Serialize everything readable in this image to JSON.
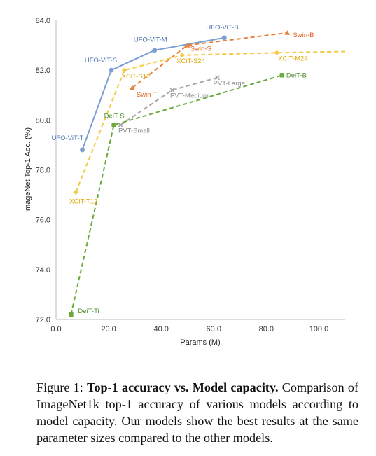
{
  "chart_data": {
    "type": "line",
    "title": "",
    "xlabel": "Params (M)",
    "ylabel": "ImageNet Top-1 Acc. (%)",
    "xlim": [
      0,
      110
    ],
    "ylim": [
      72,
      84
    ],
    "x_ticks": [
      "0.0",
      "20.0",
      "40.0",
      "60.0",
      "80.0",
      "100.0"
    ],
    "y_ticks": [
      "72.0",
      "74.0",
      "76.0",
      "78.0",
      "80.0",
      "82.0",
      "84.0"
    ],
    "grid": false,
    "legend": "none",
    "series": [
      {
        "family": "UFO-ViT",
        "color": "#7b9fd4",
        "line": "solid",
        "marker": "circle",
        "points": [
          {
            "label": "UFO-ViT-T",
            "x": 10.0,
            "y": 78.8
          },
          {
            "label": "UFO-ViT-S",
            "x": 21.0,
            "y": 82.0
          },
          {
            "label": "UFO-ViT-M",
            "x": 37.5,
            "y": 82.8
          },
          {
            "label": "UFO-ViT-B",
            "x": 64.0,
            "y": 83.3
          }
        ],
        "label_color": "#4a72b0"
      },
      {
        "family": "XCiT",
        "color": "#f5c842",
        "line": "dashed",
        "marker": "diamond",
        "points": [
          {
            "label": "XCiT-T12",
            "x": 7.5,
            "y": 77.1
          },
          {
            "label": "XCiT-S12",
            "x": 26.0,
            "y": 82.0
          },
          {
            "label": "XCiT-S24",
            "x": 48.0,
            "y": 82.6
          },
          {
            "label": "XCiT-M24",
            "x": 84.0,
            "y": 82.7
          },
          {
            "label": "",
            "x": 110.0,
            "y": 82.75
          }
        ],
        "label_color": "#e0a800"
      },
      {
        "family": "Swin",
        "color": "#e8803a",
        "line": "dashed",
        "marker": "triangle",
        "points": [
          {
            "label": "Swin-T",
            "x": 29.0,
            "y": 81.3
          },
          {
            "label": "Swin-S",
            "x": 50.0,
            "y": 83.0
          },
          {
            "label": "Swin-B",
            "x": 88.0,
            "y": 83.5
          }
        ],
        "label_color": "#e06020"
      },
      {
        "family": "PVT",
        "color": "#a6a6a6",
        "line": "dashed",
        "marker": "x",
        "points": [
          {
            "label": "PVT-Small",
            "x": 24.5,
            "y": 79.8
          },
          {
            "label": "PVT-Medium",
            "x": 44.2,
            "y": 81.2
          },
          {
            "label": "PVT-Large",
            "x": 61.4,
            "y": 81.7
          }
        ],
        "label_color": "#8a8a8a"
      },
      {
        "family": "DeiT",
        "color": "#6aaa3a",
        "line": "dashed",
        "marker": "square",
        "points": [
          {
            "label": "DeiT-Ti",
            "x": 5.7,
            "y": 72.2
          },
          {
            "label": "DeiT-S",
            "x": 22.0,
            "y": 79.8
          },
          {
            "label": "DeiT-B",
            "x": 86.0,
            "y": 81.8
          }
        ],
        "label_color": "#4f8f2a"
      }
    ]
  },
  "caption": {
    "prefix": "Figure 1: ",
    "bold": "Top-1 accuracy vs. Model capacity.",
    "rest": " Comparison of ImageNet1k top-1 accuracy of various models according to model capacity. Our models show the best results at the same parameter sizes compared to the other models."
  }
}
